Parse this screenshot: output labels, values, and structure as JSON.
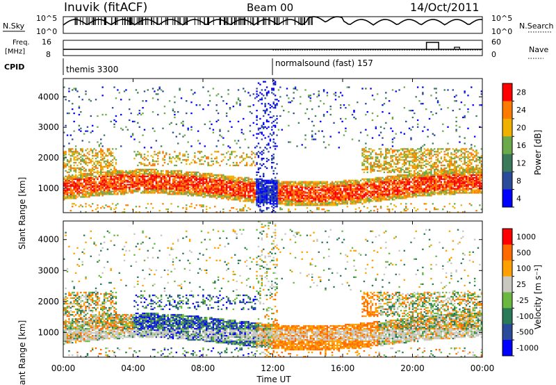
{
  "header": {
    "station": "Inuvik (fitACF)",
    "beam": "Beam 00",
    "date": "14/Oct/2011"
  },
  "top_panels": {
    "nsky_label": "N.Sky",
    "nsky_ticks": [
      "10^5",
      "10^0"
    ],
    "nsearch_label": "N.Search",
    "nsearch_ticks": [
      "10^5",
      "10^0"
    ],
    "freq_label": "Freq.",
    "freq_unit": "[MHz]",
    "freq_ticks": [
      "16",
      "8"
    ],
    "nave_label": "Nave",
    "nave_ticks": [
      "60",
      "0"
    ],
    "cpid_label": "CPID",
    "cpid_segments": [
      {
        "name": "themis 3300",
        "start_hour": 0
      },
      {
        "name": "normalsound (fast) 157",
        "start_hour": 12
      }
    ]
  },
  "x_axis": {
    "label": "Time UT",
    "tick_labels": [
      "00:00",
      "04:00",
      "08:00",
      "12:00",
      "16:00",
      "20:00",
      "00:00"
    ],
    "range_hours": [
      0,
      24
    ]
  },
  "panels": {
    "power": {
      "ylabel": "Slant Range [km]",
      "yticks": [
        "1000",
        "2000",
        "3000",
        "4000"
      ],
      "colorbar_label": "Power [dB]",
      "colorbar_ticks": [
        "28",
        "24",
        "20",
        "16",
        "12",
        "8",
        "4"
      ],
      "colors": [
        "#0000ff",
        "#2a4a9a",
        "#3a7a5a",
        "#6aaa4a",
        "#f0b000",
        "#ff7a00",
        "#ff0000"
      ]
    },
    "velocity": {
      "ylabel": "Slant Range [km]",
      "yticks": [
        "1000",
        "2000",
        "3000",
        "4000"
      ],
      "colorbar_label": "Velocity [m s⁻¹]",
      "colorbar_ticks": [
        "1000",
        "500",
        "100",
        "25",
        "-25",
        "-100",
        "-500",
        "-1000"
      ],
      "colors": [
        "#0000ff",
        "#2a4a9a",
        "#2a7a5a",
        "#6ab840",
        "#c8c8c0",
        "#ffa000",
        "#ff6a00",
        "#ff0000"
      ]
    }
  },
  "chart_data": {
    "type": "heatmap",
    "title": "Inuvik (fitACF)  Beam 00  14/Oct/2011",
    "xlabel": "Time UT",
    "ylabel": "Slant Range [km]",
    "xlim_hours": [
      0,
      24
    ],
    "ylim_km": [
      200,
      4600
    ],
    "power_bands_db": [
      4,
      8,
      12,
      16,
      20,
      24,
      28
    ],
    "velocity_bands_ms": [
      -1000,
      -500,
      -100,
      -25,
      25,
      100,
      500,
      1000
    ]
  }
}
